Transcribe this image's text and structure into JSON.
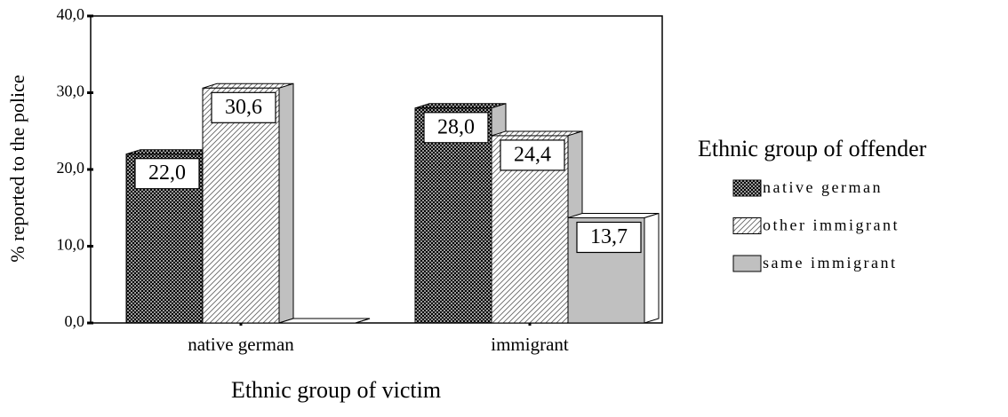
{
  "chart_data": {
    "type": "bar3d",
    "ylabel": "% reported to the police",
    "xlabel": "Ethnic group of victim",
    "legend_title": "Ethnic group of offender",
    "legend": "right",
    "categories": [
      "native german",
      "immigrant"
    ],
    "series": [
      {
        "name": "native german",
        "color": "#333333",
        "pattern": "crosshatch",
        "values": [
          22.0,
          28.0
        ],
        "value_labels": [
          "22,0",
          "28,0"
        ]
      },
      {
        "name": "other immigrant",
        "color": "#555555",
        "pattern": "hatch",
        "values": [
          30.6,
          24.4
        ],
        "value_labels": [
          "30,6",
          "24,4"
        ]
      },
      {
        "name": "same immigrant",
        "color": "#c0c0c0",
        "pattern": "solid",
        "values": [
          0,
          13.7
        ],
        "value_labels": [
          null,
          "13,7"
        ]
      }
    ],
    "ylim": [
      0,
      40
    ],
    "yticks": [
      {
        "value": 0,
        "label": "0,0"
      },
      {
        "value": 10,
        "label": "10,0"
      },
      {
        "value": 20,
        "label": "20,0"
      },
      {
        "value": 30,
        "label": "30,0"
      },
      {
        "value": 40,
        "label": "40,0"
      }
    ]
  }
}
